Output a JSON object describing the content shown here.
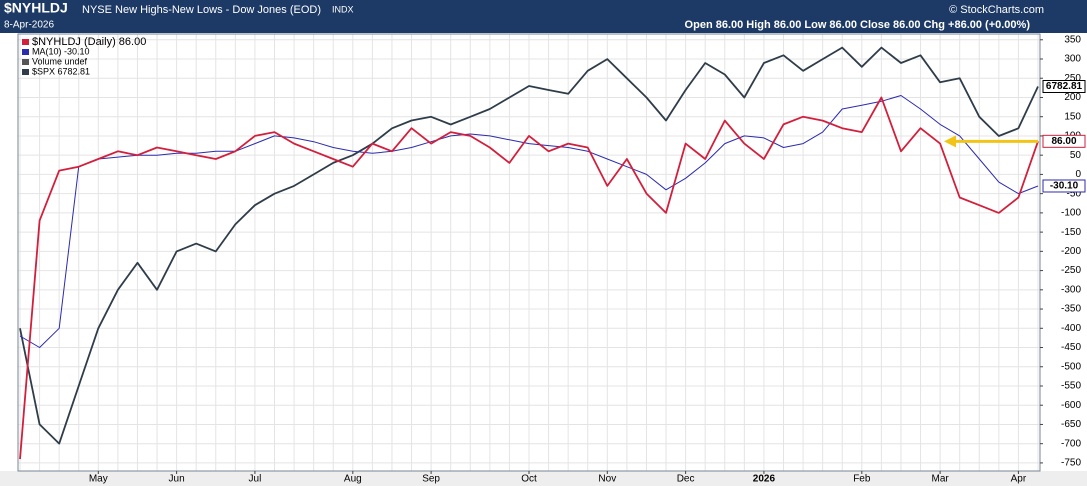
{
  "chart_data": {
    "type": "line",
    "title": "$NYHLDJ",
    "subtitle": "NYSE New Highs-New Lows - Dow Jones (EOD)",
    "exchange": "INDX",
    "watermark": "© StockCharts.com",
    "date": "8-Apr-2026",
    "ohlc": "Open 86.00 High 86.00 Low 86.00 Close 86.00 Chg +86.00 (+0.00%)",
    "legend_extra": "Volume undef",
    "categories": [
      null,
      null,
      null,
      null,
      "May",
      null,
      null,
      null,
      "Jun",
      null,
      null,
      null,
      "Jul",
      null,
      null,
      null,
      null,
      "Aug",
      null,
      null,
      null,
      "Sep",
      null,
      null,
      null,
      null,
      "Oct",
      null,
      null,
      null,
      "Nov",
      null,
      null,
      null,
      "Dec",
      null,
      null,
      null,
      "2026",
      null,
      null,
      null,
      null,
      "Feb",
      null,
      null,
      null,
      "Mar",
      null,
      null,
      null,
      "Apr",
      null
    ],
    "series": [
      {
        "name": "$NYHLDJ (Daily) 86.00",
        "color": "#d21f3c",
        "last_label": "86.00",
        "values": [
          -740,
          -120,
          10,
          20,
          40,
          60,
          50,
          70,
          60,
          50,
          40,
          60,
          100,
          110,
          80,
          60,
          40,
          20,
          80,
          60,
          120,
          80,
          110,
          100,
          70,
          30,
          100,
          60,
          80,
          70,
          -30,
          40,
          -50,
          -100,
          80,
          40,
          140,
          80,
          40,
          130,
          150,
          140,
          120,
          110,
          200,
          60,
          120,
          80,
          -60,
          -80,
          -100,
          -60,
          86
        ]
      },
      {
        "name": "MA(10) -30.10",
        "color": "#2b2bb0",
        "last_label": "-30.10",
        "values": [
          -420,
          -450,
          -400,
          20,
          40,
          45,
          50,
          50,
          55,
          55,
          60,
          60,
          80,
          100,
          95,
          85,
          70,
          60,
          55,
          60,
          70,
          85,
          100,
          105,
          100,
          90,
          80,
          75,
          70,
          60,
          40,
          20,
          0,
          -40,
          -10,
          30,
          80,
          100,
          95,
          70,
          80,
          110,
          170,
          180,
          190,
          205,
          170,
          130,
          100,
          40,
          -20,
          -50,
          -30.1
        ]
      },
      {
        "name": "$SPX 6782.81",
        "color": "#2f3d4a",
        "axis": "y2",
        "last_label": "6782.81",
        "values": [
          5626,
          5166,
          5074,
          5350,
          5626,
          5810,
          5939,
          5810,
          5994,
          6031,
          5994,
          6123,
          6215,
          6270,
          6307,
          6362,
          6417,
          6454,
          6509,
          6583,
          6620,
          6638,
          6601,
          6638,
          6675,
          6730,
          6785,
          6766,
          6748,
          6858,
          6914,
          6822,
          6730,
          6620,
          6766,
          6895,
          6840,
          6730,
          6895,
          6932,
          6858,
          6914,
          6969,
          6877,
          6969,
          6895,
          6932,
          6803,
          6822,
          6638,
          6546,
          6583,
          6782.81
        ]
      }
    ],
    "ylim": [
      -771,
      365
    ],
    "yticks": [
      -750,
      -700,
      -650,
      -600,
      -550,
      -500,
      -450,
      -400,
      -350,
      -300,
      -250,
      -200,
      -150,
      -100,
      -50,
      0,
      50,
      100,
      150,
      200,
      250,
      300,
      350
    ],
    "y2lim": [
      4943,
      7034
    ],
    "grid": true
  }
}
